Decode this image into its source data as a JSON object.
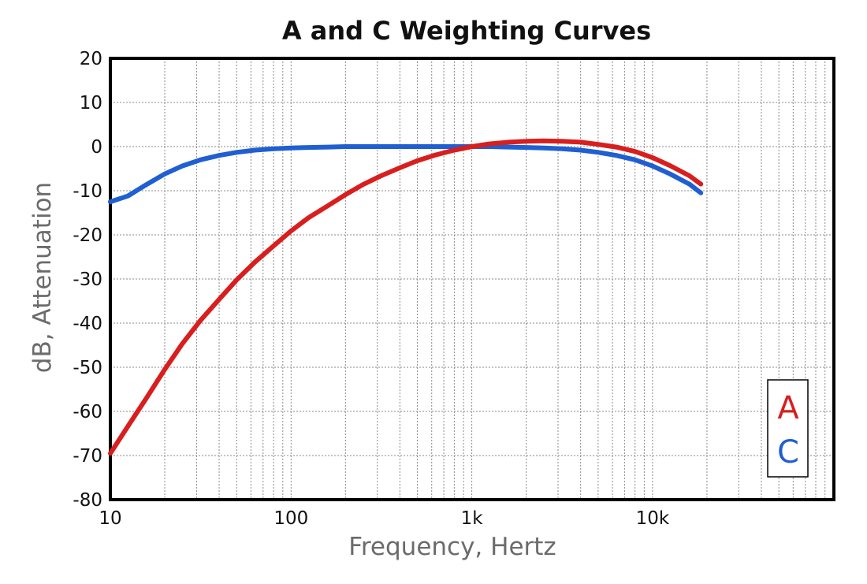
{
  "chart_data": {
    "type": "line",
    "title": "A and C Weighting Curves",
    "xlabel": "Frequency, Hertz",
    "ylabel": "dB, Attenuation",
    "x_scale": "log",
    "xlim": [
      10,
      90000
    ],
    "ylim": [
      -80,
      20
    ],
    "x_ticks": [
      {
        "value": 10,
        "label": "10"
      },
      {
        "value": 100,
        "label": "100"
      },
      {
        "value": 1000,
        "label": "1k"
      },
      {
        "value": 10000,
        "label": "10k"
      }
    ],
    "y_ticks": [
      20,
      10,
      0,
      -10,
      -20,
      -30,
      -40,
      -50,
      -60,
      -70,
      -80
    ],
    "grid": true,
    "legend_position": "bottom-right",
    "series": [
      {
        "name": "A",
        "color": "#d81e1e",
        "points": [
          [
            10,
            -69.5
          ],
          [
            12.5,
            -63.4
          ],
          [
            16,
            -56.7
          ],
          [
            20,
            -50.5
          ],
          [
            25,
            -44.7
          ],
          [
            31.5,
            -39.4
          ],
          [
            40,
            -34.6
          ],
          [
            50,
            -30.2
          ],
          [
            63,
            -26.2
          ],
          [
            80,
            -22.5
          ],
          [
            100,
            -19.1
          ],
          [
            125,
            -16.1
          ],
          [
            160,
            -13.4
          ],
          [
            200,
            -10.9
          ],
          [
            250,
            -8.6
          ],
          [
            315,
            -6.6
          ],
          [
            400,
            -4.8
          ],
          [
            500,
            -3.2
          ],
          [
            630,
            -1.9
          ],
          [
            800,
            -0.8
          ],
          [
            1000,
            0
          ],
          [
            1250,
            0.6
          ],
          [
            1600,
            1.0
          ],
          [
            2000,
            1.2
          ],
          [
            2500,
            1.3
          ],
          [
            3150,
            1.2
          ],
          [
            4000,
            1.0
          ],
          [
            5000,
            0.5
          ],
          [
            6300,
            -0.1
          ],
          [
            8000,
            -1.1
          ],
          [
            10000,
            -2.5
          ],
          [
            12500,
            -4.3
          ],
          [
            16000,
            -6.6
          ],
          [
            18500,
            -8.5
          ]
        ]
      },
      {
        "name": "C",
        "color": "#1f5fd1",
        "points": [
          [
            10,
            -12.5
          ],
          [
            12.5,
            -11.2
          ],
          [
            16,
            -8.5
          ],
          [
            20,
            -6.2
          ],
          [
            25,
            -4.4
          ],
          [
            31.5,
            -3.0
          ],
          [
            40,
            -2.0
          ],
          [
            50,
            -1.3
          ],
          [
            63,
            -0.8
          ],
          [
            80,
            -0.5
          ],
          [
            100,
            -0.3
          ],
          [
            125,
            -0.2
          ],
          [
            160,
            -0.1
          ],
          [
            200,
            0
          ],
          [
            250,
            0
          ],
          [
            315,
            0
          ],
          [
            400,
            0
          ],
          [
            500,
            0
          ],
          [
            630,
            0
          ],
          [
            800,
            0
          ],
          [
            1000,
            0
          ],
          [
            1250,
            0
          ],
          [
            1600,
            -0.1
          ],
          [
            2000,
            -0.2
          ],
          [
            2500,
            -0.3
          ],
          [
            3150,
            -0.5
          ],
          [
            4000,
            -0.8
          ],
          [
            5000,
            -1.3
          ],
          [
            6300,
            -2.0
          ],
          [
            8000,
            -3.0
          ],
          [
            10000,
            -4.4
          ],
          [
            12500,
            -6.2
          ],
          [
            16000,
            -8.5
          ],
          [
            18500,
            -10.5
          ]
        ]
      }
    ]
  }
}
